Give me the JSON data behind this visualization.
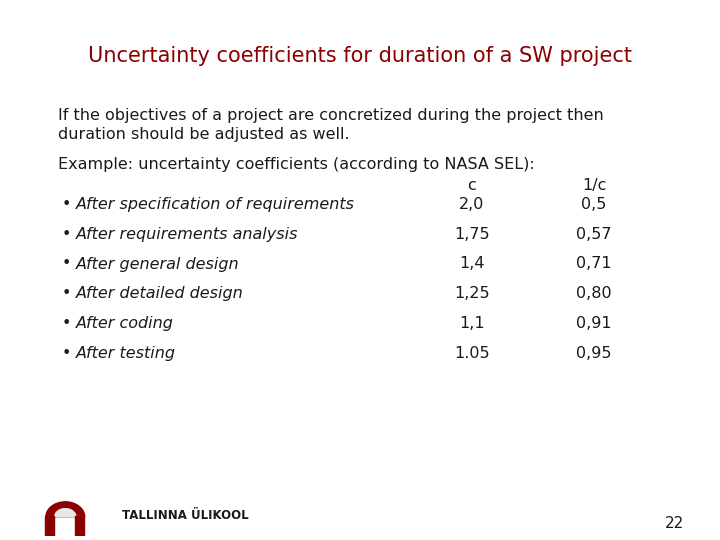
{
  "title": "Uncertainty coefficients for duration of a SW project",
  "title_color": "#8B0000",
  "title_fontsize": 15,
  "background_color": "#FFFFFF",
  "footer_bg_color": "#E8E8E8",
  "intro_text_line1": "If the objectives of a project are concretized during the project then",
  "intro_text_line2": "duration should be adjusted as well.",
  "example_label": "Example: uncertainty coefficients (according to NASA SEL):",
  "col_header_c": "c",
  "col_header_1c": "1/c",
  "rows": [
    {
      "label": "After specification of requirements",
      "c": "2,0",
      "inv_c": "0,5"
    },
    {
      "label": "After requirements analysis",
      "c": "1,75",
      "inv_c": "0,57"
    },
    {
      "label": "After general design",
      "c": "1,4",
      "inv_c": "0,71"
    },
    {
      "label": "After detailed design",
      "c": "1,25",
      "inv_c": "0,80"
    },
    {
      "label": "After coding",
      "c": "1,1",
      "inv_c": "0,91"
    },
    {
      "label": "After testing",
      "c": "1.05",
      "inv_c": "0,95"
    }
  ],
  "bullet": "•",
  "footer_text": "TALLINNA ÜLIKOOL",
  "page_number": "22",
  "text_color": "#1a1a1a",
  "body_fontsize": 11.5,
  "label_fontsize": 11.5,
  "number_fontsize": 11.5
}
